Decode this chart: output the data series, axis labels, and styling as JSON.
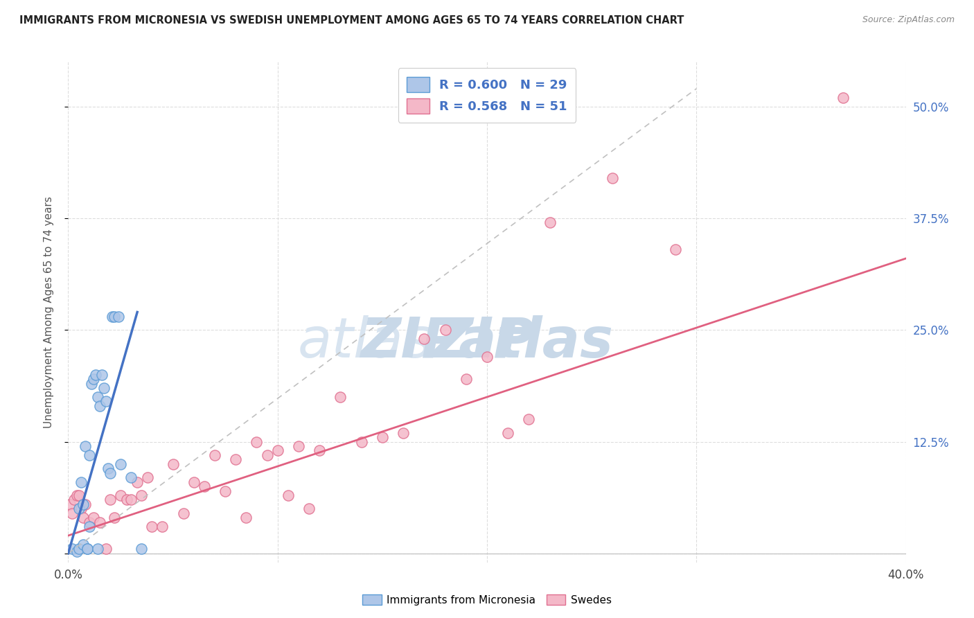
{
  "title": "IMMIGRANTS FROM MICRONESIA VS SWEDISH UNEMPLOYMENT AMONG AGES 65 TO 74 YEARS CORRELATION CHART",
  "source": "Source: ZipAtlas.com",
  "ylabel": "Unemployment Among Ages 65 to 74 years",
  "xlim": [
    0.0,
    0.4
  ],
  "ylim": [
    -0.01,
    0.55
  ],
  "ytick_positions": [
    0.0,
    0.125,
    0.25,
    0.375,
    0.5
  ],
  "ytick_labels_right": [
    "",
    "12.5%",
    "25.0%",
    "37.5%",
    "50.0%"
  ],
  "R_micronesia": 0.6,
  "N_micronesia": 29,
  "R_swedes": 0.568,
  "N_swedes": 51,
  "color_micronesia_fill": "#aec6e8",
  "color_micronesia_edge": "#5b9bd5",
  "color_micronesia_line": "#4472c4",
  "color_swedes_fill": "#f4b8c8",
  "color_swedes_edge": "#e07090",
  "color_swedes_line": "#e06080",
  "color_dashed": "#c0c0c0",
  "mic_x": [
    0.002,
    0.004,
    0.005,
    0.005,
    0.006,
    0.007,
    0.007,
    0.008,
    0.009,
    0.009,
    0.01,
    0.01,
    0.011,
    0.012,
    0.013,
    0.014,
    0.014,
    0.015,
    0.016,
    0.017,
    0.018,
    0.019,
    0.02,
    0.021,
    0.022,
    0.024,
    0.025,
    0.03,
    0.035
  ],
  "mic_y": [
    0.005,
    0.002,
    0.05,
    0.005,
    0.08,
    0.055,
    0.01,
    0.12,
    0.005,
    0.005,
    0.11,
    0.03,
    0.19,
    0.195,
    0.2,
    0.175,
    0.005,
    0.165,
    0.2,
    0.185,
    0.17,
    0.095,
    0.09,
    0.265,
    0.265,
    0.265,
    0.1,
    0.085,
    0.005
  ],
  "swe_x": [
    0.001,
    0.002,
    0.003,
    0.004,
    0.005,
    0.006,
    0.007,
    0.008,
    0.01,
    0.012,
    0.015,
    0.018,
    0.02,
    0.022,
    0.025,
    0.028,
    0.03,
    0.033,
    0.035,
    0.038,
    0.04,
    0.045,
    0.05,
    0.055,
    0.06,
    0.065,
    0.07,
    0.075,
    0.08,
    0.085,
    0.09,
    0.095,
    0.1,
    0.105,
    0.11,
    0.115,
    0.12,
    0.13,
    0.14,
    0.15,
    0.16,
    0.17,
    0.18,
    0.19,
    0.2,
    0.21,
    0.22,
    0.23,
    0.26,
    0.29,
    0.37
  ],
  "swe_y": [
    0.055,
    0.045,
    0.06,
    0.065,
    0.065,
    0.05,
    0.04,
    0.055,
    0.035,
    0.04,
    0.035,
    0.005,
    0.06,
    0.04,
    0.065,
    0.06,
    0.06,
    0.08,
    0.065,
    0.085,
    0.03,
    0.03,
    0.1,
    0.045,
    0.08,
    0.075,
    0.11,
    0.07,
    0.105,
    0.04,
    0.125,
    0.11,
    0.115,
    0.065,
    0.12,
    0.05,
    0.115,
    0.175,
    0.125,
    0.13,
    0.135,
    0.24,
    0.25,
    0.195,
    0.22,
    0.135,
    0.15,
    0.37,
    0.42,
    0.34,
    0.51
  ],
  "blue_line_x": [
    0.0,
    0.033
  ],
  "blue_line_y": [
    0.0,
    0.27
  ],
  "pink_line_x": [
    0.0,
    0.4
  ],
  "pink_line_y": [
    0.02,
    0.33
  ],
  "dash_line_x": [
    0.0,
    0.3
  ],
  "dash_line_y": [
    0.0,
    0.52
  ],
  "watermark_top": "ZIP",
  "watermark_bot": "atlas",
  "watermark_color": "#c8d8e8",
  "background_color": "#ffffff",
  "grid_color": "#dddddd"
}
